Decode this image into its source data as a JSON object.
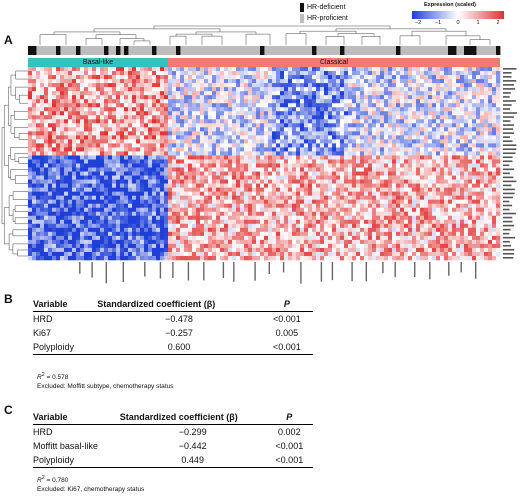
{
  "panels": {
    "a": "A",
    "b": "B",
    "c": "C"
  },
  "legend": {
    "hr_deficient": "HR-deficient",
    "hr_proficient": "HR-proficient",
    "hr_deficient_color": "#111111",
    "hr_proficient_color": "#bdbdbd"
  },
  "colorbar": {
    "title": "Expression (scaled)",
    "ticks": [
      "−2",
      "−1",
      "0",
      "1",
      "2"
    ],
    "low_color": "#1f3fd6",
    "mid_color": "#ffffff",
    "high_color": "#e03030"
  },
  "subtypes": {
    "basal": "Basal-like",
    "classical": "Classical",
    "basal_color": "#35c1bd",
    "classical_color": "#f27b6f"
  },
  "table_b": {
    "headers": [
      "Variable",
      "Standardized coefficient (β)",
      "P"
    ],
    "rows": [
      {
        "variable": "HRD",
        "coef": "−0.478",
        "p": "<0.001"
      },
      {
        "variable": "Ki67",
        "coef": "−0.257",
        "p": "0.005"
      },
      {
        "variable": "Polyploidy",
        "coef": "0.600",
        "p": "<0.001"
      }
    ],
    "r2_label": "R",
    "r2_value": " = 0.578",
    "excluded": "Excluded: Moffitt subtype, chemotherapy status"
  },
  "table_c": {
    "headers": [
      "Variable",
      "Standardized coefficient (β)",
      "P"
    ],
    "rows": [
      {
        "variable": "HRD",
        "coef": "−0.299",
        "p": "0.002"
      },
      {
        "variable": "Moffitt basal-like",
        "coef": "−0.442",
        "p": "<0.001"
      },
      {
        "variable": "Polyploidy",
        "coef": "0.449",
        "p": "<0.001"
      }
    ],
    "r2_label": "R",
    "r2_value": " = 0.780",
    "excluded": "Excluded: Ki67, chemotherapy status"
  }
}
